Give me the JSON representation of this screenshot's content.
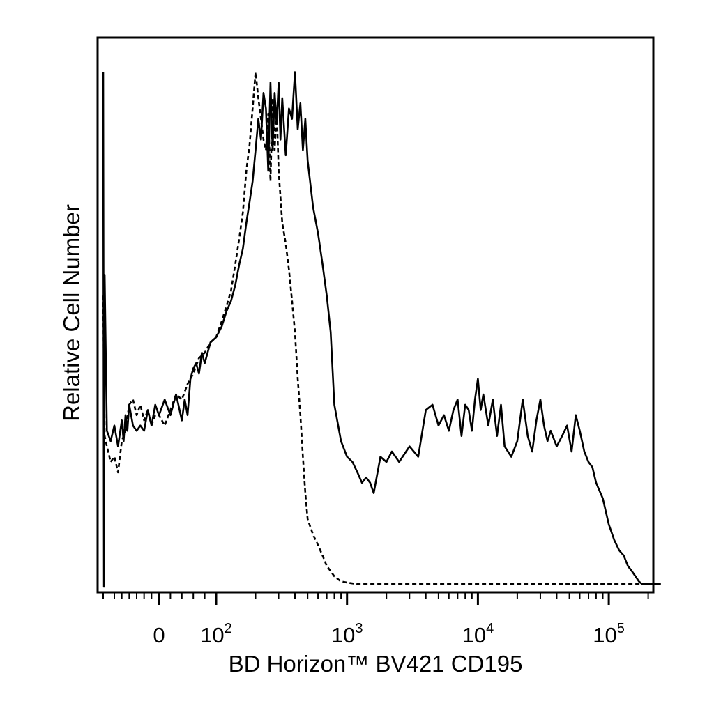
{
  "chart_data": {
    "type": "line",
    "title": "",
    "xlabel": "BD Horizon™ BV421 CD195",
    "ylabel": "Relative Cell Number",
    "x_scale": "biexponential (log above ~10^2, linear near 0)",
    "xlim": [
      -150,
      250000
    ],
    "ylim": [
      0,
      1
    ],
    "grid": false,
    "legend": "none",
    "x_tick_labels": [
      {
        "value": 0,
        "base": "0",
        "exp": ""
      },
      {
        "value": 100,
        "base": "10",
        "exp": "2"
      },
      {
        "value": 1000,
        "base": "10",
        "exp": "3"
      },
      {
        "value": 10000,
        "base": "10",
        "exp": "4"
      },
      {
        "value": 100000,
        "base": "10",
        "exp": "5"
      }
    ],
    "x_ticks": [
      -150,
      -120,
      -100,
      -80,
      -60,
      -40,
      -20,
      0,
      20,
      40,
      60,
      80,
      100,
      200,
      300,
      400,
      500,
      600,
      700,
      800,
      900,
      1000,
      2000,
      3000,
      4000,
      5000,
      6000,
      7000,
      8000,
      9000,
      10000,
      20000,
      30000,
      40000,
      50000,
      60000,
      70000,
      80000,
      90000,
      100000,
      200000
    ],
    "series": [
      {
        "style": "solid",
        "color": "#000000",
        "x": [
          -150,
          -148,
          -146,
          -140,
          -130,
          -120,
          -110,
          -100,
          -95,
          -90,
          -85,
          -80,
          -70,
          -60,
          -50,
          -40,
          -30,
          -20,
          -10,
          0,
          10,
          20,
          30,
          40,
          45,
          50,
          55,
          60,
          65,
          70,
          75,
          80,
          90,
          100,
          110,
          120,
          130,
          140,
          150,
          160,
          170,
          180,
          190,
          200,
          210,
          220,
          230,
          240,
          250,
          260,
          270,
          280,
          290,
          300,
          310,
          320,
          340,
          360,
          380,
          400,
          420,
          440,
          460,
          480,
          500,
          550,
          600,
          650,
          700,
          750,
          800,
          900,
          1000,
          1100,
          1200,
          1300,
          1400,
          1500,
          1600,
          1800,
          2000,
          2200,
          2500,
          3000,
          3500,
          4000,
          4500,
          5000,
          5500,
          6000,
          6500,
          7000,
          7500,
          8000,
          8500,
          9000,
          9500,
          10000,
          10500,
          11000,
          12000,
          13000,
          14000,
          15000,
          16000,
          18000,
          20000,
          22000,
          24000,
          26000,
          28000,
          30000,
          32000,
          34000,
          36000,
          40000,
          44000,
          48000,
          52000,
          56000,
          60000,
          65000,
          70000,
          75000,
          80000,
          90000,
          100000,
          110000,
          120000,
          130000,
          140000,
          150000,
          160000,
          170000,
          180000,
          190000,
          200000,
          220000,
          250000
        ],
        "y": [
          0.99,
          0.0,
          0.6,
          0.3,
          0.28,
          0.31,
          0.27,
          0.32,
          0.28,
          0.33,
          0.3,
          0.35,
          0.31,
          0.3,
          0.31,
          0.3,
          0.34,
          0.31,
          0.35,
          0.33,
          0.36,
          0.33,
          0.37,
          0.32,
          0.36,
          0.33,
          0.4,
          0.42,
          0.43,
          0.41,
          0.45,
          0.43,
          0.47,
          0.48,
          0.5,
          0.53,
          0.55,
          0.58,
          0.62,
          0.65,
          0.7,
          0.74,
          0.78,
          0.84,
          0.9,
          0.86,
          0.95,
          0.92,
          0.8,
          0.97,
          0.84,
          0.95,
          0.89,
          0.97,
          0.86,
          0.94,
          0.83,
          0.92,
          0.9,
          0.99,
          0.88,
          0.93,
          0.84,
          0.9,
          0.82,
          0.73,
          0.68,
          0.62,
          0.56,
          0.49,
          0.35,
          0.28,
          0.25,
          0.24,
          0.22,
          0.2,
          0.21,
          0.2,
          0.18,
          0.25,
          0.24,
          0.26,
          0.24,
          0.27,
          0.25,
          0.34,
          0.35,
          0.31,
          0.33,
          0.3,
          0.34,
          0.36,
          0.29,
          0.35,
          0.34,
          0.3,
          0.36,
          0.4,
          0.34,
          0.37,
          0.31,
          0.36,
          0.29,
          0.35,
          0.27,
          0.25,
          0.28,
          0.36,
          0.29,
          0.26,
          0.32,
          0.36,
          0.31,
          0.28,
          0.3,
          0.27,
          0.29,
          0.31,
          0.26,
          0.33,
          0.3,
          0.26,
          0.24,
          0.23,
          0.2,
          0.17,
          0.12,
          0.09,
          0.07,
          0.06,
          0.04,
          0.03,
          0.02,
          0.01,
          0.005,
          0.005,
          0.005,
          0.005,
          0.005
        ]
      },
      {
        "style": "dashed",
        "color": "#000000",
        "x": [
          -150,
          -146,
          -140,
          -130,
          -120,
          -110,
          -100,
          -90,
          -80,
          -70,
          -60,
          -50,
          -40,
          -30,
          -20,
          -10,
          0,
          10,
          20,
          30,
          40,
          50,
          60,
          70,
          80,
          90,
          100,
          110,
          120,
          130,
          140,
          150,
          160,
          170,
          180,
          190,
          200,
          210,
          220,
          230,
          240,
          250,
          260,
          270,
          280,
          290,
          300,
          320,
          340,
          360,
          380,
          400,
          420,
          440,
          460,
          480,
          500,
          550,
          600,
          650,
          700,
          750,
          800,
          900,
          1000,
          1200,
          1500,
          2000,
          3000,
          5000,
          10000,
          30000,
          100000,
          250000
        ],
        "y": [
          0.56,
          0.29,
          0.27,
          0.24,
          0.25,
          0.22,
          0.28,
          0.3,
          0.35,
          0.36,
          0.33,
          0.35,
          0.32,
          0.34,
          0.31,
          0.33,
          0.33,
          0.31,
          0.34,
          0.37,
          0.36,
          0.39,
          0.41,
          0.44,
          0.45,
          0.47,
          0.48,
          0.51,
          0.54,
          0.57,
          0.62,
          0.67,
          0.72,
          0.8,
          0.85,
          0.92,
          0.99,
          0.94,
          0.9,
          0.86,
          0.84,
          0.91,
          0.78,
          0.94,
          0.84,
          0.92,
          0.8,
          0.7,
          0.66,
          0.61,
          0.55,
          0.49,
          0.4,
          0.33,
          0.25,
          0.18,
          0.13,
          0.1,
          0.08,
          0.06,
          0.04,
          0.03,
          0.02,
          0.01,
          0.008,
          0.005,
          0.005,
          0.005,
          0.005,
          0.005,
          0.005,
          0.005,
          0.005,
          0.005
        ]
      }
    ]
  }
}
